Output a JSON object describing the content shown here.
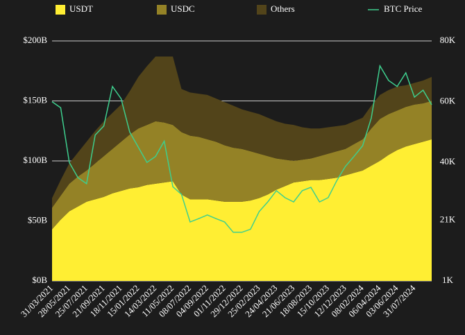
{
  "chart_data": {
    "type": "area",
    "stacked": true,
    "categories": [
      "31/03/2021",
      null,
      "28/05/2021",
      null,
      "25/07/2021",
      null,
      "21/09/2021",
      null,
      "18/11/2021",
      null,
      "15/01/2022",
      null,
      "14/03/2022",
      null,
      "11/05/2022",
      null,
      "08/07/2022",
      null,
      "04/09/2022",
      null,
      "01/11/2022",
      null,
      "29/12/2022",
      null,
      "25/02/2023",
      null,
      "24/04/2023",
      null,
      "21/06/2023",
      null,
      "18/08/2023",
      null,
      "15/10/2023",
      null,
      "12/12/2023",
      null,
      "08/02/2024",
      null,
      "06/04/2024",
      null,
      "03/06/2024",
      null,
      "31/07/2024",
      null,
      null
    ],
    "series": [
      {
        "name": "USDT",
        "color": "#ffee33",
        "values": [
          43,
          51,
          58,
          62,
          66,
          68,
          70,
          73,
          75,
          77,
          78,
          80,
          81,
          82,
          83,
          72,
          68,
          68,
          68,
          67,
          66,
          66,
          66,
          67,
          69,
          72,
          76,
          79,
          82,
          83,
          84,
          84,
          85,
          86,
          88,
          90,
          92,
          96,
          100,
          105,
          109,
          112,
          114,
          116,
          118
        ]
      },
      {
        "name": "USDC",
        "color": "#948226",
        "values": [
          18,
          20,
          23,
          25,
          26,
          30,
          34,
          37,
          41,
          45,
          49,
          50,
          52,
          50,
          47,
          52,
          53,
          52,
          50,
          49,
          47,
          45,
          44,
          41,
          37,
          32,
          26,
          22,
          18,
          18,
          18,
          20,
          21,
          22,
          22,
          24,
          26,
          31,
          35,
          34,
          33,
          33,
          33,
          32,
          32
        ]
      },
      {
        "name": "Others",
        "color": "#52441a",
        "values": [
          8,
          13,
          17,
          20,
          24,
          27,
          29,
          30,
          31,
          36,
          43,
          49,
          54,
          55,
          57,
          36,
          36,
          36,
          37,
          36,
          36,
          35,
          33,
          33,
          33,
          32,
          31,
          30,
          30,
          27,
          25,
          23,
          22,
          21,
          20,
          19,
          18,
          19,
          20,
          20,
          20,
          18,
          18,
          19,
          20
        ]
      },
      {
        "name": "BTC Price",
        "type": "line",
        "axis": "y2",
        "color": "#3ecf8e",
        "values": [
          60000,
          58000,
          40000,
          35000,
          33000,
          49000,
          52000,
          65000,
          61000,
          50000,
          45000,
          40000,
          42000,
          47000,
          32000,
          29500,
          20400,
          21500,
          22700,
          21500,
          20400,
          17000,
          17000,
          18000,
          23800,
          27000,
          30700,
          28400,
          27000,
          30700,
          31800,
          27000,
          28400,
          34000,
          38700,
          42000,
          45500,
          54600,
          71800,
          67000,
          65000,
          69500,
          61500,
          63800,
          59000
        ]
      }
    ],
    "ylim": [
      0,
      200
    ],
    "yticks": [
      {
        "value": 0,
        "label": "$0B"
      },
      {
        "value": 50,
        "label": "$50B"
      },
      {
        "value": 100,
        "label": "$100B"
      },
      {
        "value": 150,
        "label": "$150B"
      },
      {
        "value": 200,
        "label": "$200B"
      }
    ],
    "y2lim": [
      1000,
      80000
    ],
    "y2ticks": [
      {
        "value": 1000,
        "label": "1K"
      },
      {
        "value": 21000,
        "label": "21K"
      },
      {
        "value": 40000,
        "label": "40K"
      },
      {
        "value": 60000,
        "label": "60K"
      },
      {
        "value": 80000,
        "label": "80K"
      }
    ],
    "grid": true,
    "legend": "top"
  }
}
